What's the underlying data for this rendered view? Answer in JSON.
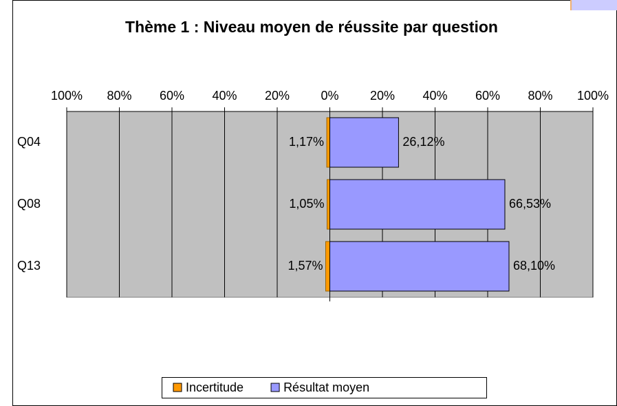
{
  "chart_data": {
    "type": "bar",
    "orientation": "horizontal",
    "title": "Thème 1 : Niveau moyen de réussite par question",
    "categories": [
      "Q04",
      "Q08",
      "Q13"
    ],
    "series": [
      {
        "name": "Incertitude",
        "color": "#ff9900",
        "values": [
          -1.17,
          -1.05,
          -1.57
        ],
        "value_labels": [
          "1,17%",
          "1,05%",
          "1,57%"
        ]
      },
      {
        "name": "Résultat moyen",
        "color": "#9999ff",
        "values": [
          26.12,
          66.53,
          68.1
        ],
        "value_labels": [
          "26,12%",
          "66,53%",
          "68,10%"
        ]
      }
    ],
    "xlim": [
      -100,
      100
    ],
    "xticks": [
      {
        "value": -100,
        "label": "100%"
      },
      {
        "value": -80,
        "label": "80%"
      },
      {
        "value": -60,
        "label": "60%"
      },
      {
        "value": -40,
        "label": "40%"
      },
      {
        "value": -20,
        "label": "20%"
      },
      {
        "value": 0,
        "label": "0%"
      },
      {
        "value": 20,
        "label": "20%"
      },
      {
        "value": 40,
        "label": "40%"
      },
      {
        "value": 60,
        "label": "60%"
      },
      {
        "value": 80,
        "label": "80%"
      },
      {
        "value": 100,
        "label": "100%"
      }
    ],
    "grid": true,
    "legend": "bottom"
  }
}
